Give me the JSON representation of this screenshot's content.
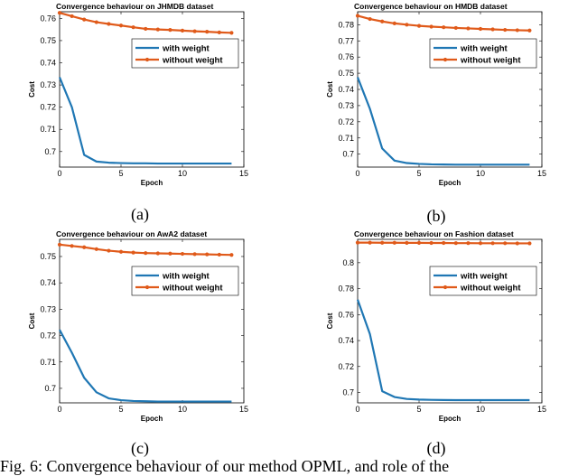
{
  "colors": {
    "with_weight": "#1f77b4",
    "without_weight": "#e05a1a"
  },
  "caption": "Fig. 6: Convergence behaviour of our method OPML, and role of the",
  "chart_data": [
    {
      "type": "line",
      "panel_label": "(a)",
      "title": "Convergence behaviour on JHMDB dataset",
      "xlabel": "Epoch",
      "ylabel": "Cost",
      "xlim": [
        0,
        15
      ],
      "ylim": [
        0.693,
        0.763
      ],
      "xticks": [
        0,
        5,
        10,
        15
      ],
      "yticks": [
        0.7,
        0.71,
        0.72,
        0.73,
        0.74,
        0.75,
        0.76
      ],
      "legend": "upper-middle",
      "x": [
        0,
        1,
        2,
        3,
        4,
        5,
        6,
        7,
        8,
        9,
        10,
        11,
        12,
        13,
        14
      ],
      "series": [
        {
          "name": "with weight",
          "values": [
            0.7335,
            0.72,
            0.6985,
            0.6955,
            0.695,
            0.6948,
            0.6947,
            0.6947,
            0.6946,
            0.6946,
            0.6946,
            0.6946,
            0.6946,
            0.6946,
            0.6946
          ]
        },
        {
          "name": "without weight",
          "values": [
            0.7625,
            0.761,
            0.7595,
            0.7583,
            0.7575,
            0.7568,
            0.756,
            0.7553,
            0.755,
            0.7548,
            0.7545,
            0.7542,
            0.754,
            0.7537,
            0.7535
          ]
        }
      ]
    },
    {
      "type": "line",
      "panel_label": "(b)",
      "title": "Convergence behaviour on HMDB dataset",
      "xlabel": "Epoch",
      "ylabel": "Cost",
      "xlim": [
        0,
        15
      ],
      "ylim": [
        0.692,
        0.788
      ],
      "xticks": [
        0,
        5,
        10,
        15
      ],
      "yticks": [
        0.7,
        0.71,
        0.72,
        0.73,
        0.74,
        0.75,
        0.76,
        0.77,
        0.78
      ],
      "legend": "upper-middle",
      "x": [
        0,
        1,
        2,
        3,
        4,
        5,
        6,
        7,
        8,
        9,
        10,
        11,
        12,
        13,
        14
      ],
      "series": [
        {
          "name": "with weight",
          "values": [
            0.7475,
            0.728,
            0.7035,
            0.696,
            0.6945,
            0.694,
            0.6937,
            0.6936,
            0.6935,
            0.6935,
            0.6935,
            0.6935,
            0.6935,
            0.6935,
            0.6935
          ]
        },
        {
          "name": "without weight",
          "values": [
            0.7855,
            0.7835,
            0.782,
            0.7808,
            0.78,
            0.7793,
            0.7788,
            0.7784,
            0.778,
            0.7777,
            0.7774,
            0.7771,
            0.7768,
            0.7766,
            0.7764
          ]
        }
      ]
    },
    {
      "type": "line",
      "panel_label": "(c)",
      "title": "Convergence behaviour on AwA2 dataset",
      "xlabel": "Epoch",
      "ylabel": "Cost",
      "xlim": [
        0,
        15
      ],
      "ylim": [
        0.6945,
        0.7565
      ],
      "xticks": [
        0,
        5,
        10,
        15
      ],
      "yticks": [
        0.7,
        0.71,
        0.72,
        0.73,
        0.74,
        0.75
      ],
      "legend": "upper-middle",
      "x": [
        0,
        1,
        2,
        3,
        4,
        5,
        6,
        7,
        8,
        9,
        10,
        11,
        12,
        13,
        14
      ],
      "series": [
        {
          "name": "with weight",
          "values": [
            0.7222,
            0.7135,
            0.704,
            0.6985,
            0.6962,
            0.6955,
            0.6952,
            0.6951,
            0.695,
            0.695,
            0.695,
            0.695,
            0.695,
            0.695,
            0.695
          ]
        },
        {
          "name": "without weight",
          "values": [
            0.7545,
            0.754,
            0.7535,
            0.7528,
            0.7522,
            0.7518,
            0.7515,
            0.7513,
            0.7512,
            0.7511,
            0.751,
            0.7509,
            0.7508,
            0.7507,
            0.7506
          ]
        }
      ]
    },
    {
      "type": "line",
      "panel_label": "(d)",
      "title": "Convergence behaviour on Fashion dataset",
      "xlabel": "Epoch",
      "ylabel": "Cost",
      "xlim": [
        0,
        15
      ],
      "ylim": [
        0.692,
        0.818
      ],
      "xticks": [
        0,
        5,
        10,
        15
      ],
      "yticks": [
        0.7,
        0.72,
        0.74,
        0.76,
        0.78,
        0.8
      ],
      "legend": "upper-middle",
      "x": [
        0,
        1,
        2,
        3,
        4,
        5,
        6,
        7,
        8,
        9,
        10,
        11,
        12,
        13,
        14
      ],
      "series": [
        {
          "name": "with weight",
          "values": [
            0.7715,
            0.745,
            0.701,
            0.6965,
            0.695,
            0.6945,
            0.6943,
            0.6942,
            0.6941,
            0.6941,
            0.6941,
            0.6941,
            0.6941,
            0.6941,
            0.6941
          ]
        },
        {
          "name": "without weight",
          "values": [
            0.8155,
            0.8155,
            0.8154,
            0.8154,
            0.8153,
            0.8153,
            0.8152,
            0.8152,
            0.8151,
            0.8151,
            0.815,
            0.815,
            0.815,
            0.8149,
            0.8149
          ]
        }
      ]
    }
  ]
}
